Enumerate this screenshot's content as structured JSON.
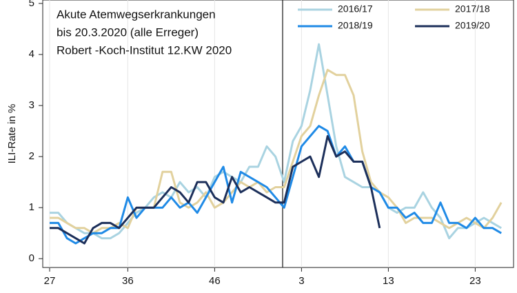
{
  "chart_data": {
    "type": "line",
    "annotation_lines": [
      "Akute Atemwegserkrankungen",
      "bis 20.3.2020 (alle Erreger)",
      "Robert -Koch-Institut 12.KW 2020"
    ],
    "y_label": "ILI-Rate in %",
    "categories": [
      "27",
      null,
      null,
      null,
      null,
      null,
      null,
      null,
      null,
      "36",
      null,
      null,
      null,
      null,
      null,
      null,
      null,
      null,
      null,
      "46",
      null,
      null,
      null,
      null,
      null,
      null,
      null,
      null,
      null,
      "3",
      null,
      null,
      null,
      null,
      null,
      null,
      null,
      null,
      null,
      "13",
      null,
      null,
      null,
      null,
      null,
      null,
      null,
      null,
      null,
      "23",
      null,
      null,
      null
    ],
    "ylim": [
      -0.2,
      5
    ],
    "yticks": [
      0,
      1,
      2,
      3,
      4,
      5
    ],
    "grid": true,
    "series": [
      {
        "name": "2016/17",
        "color": "#a9d3e1",
        "values": [
          0.9,
          0.9,
          0.7,
          0.6,
          0.5,
          0.5,
          0.4,
          0.4,
          0.5,
          0.7,
          0.9,
          1.0,
          1.2,
          1.3,
          1.2,
          1.5,
          1.3,
          1.4,
          1.2,
          1.6,
          1.7,
          1.6,
          1.5,
          1.8,
          1.8,
          2.2,
          2.0,
          1.5,
          2.3,
          2.6,
          3.3,
          4.2,
          3.2,
          2.2,
          1.6,
          1.5,
          1.4,
          1.4,
          1.3,
          1.0,
          0.9,
          1.0,
          1.0,
          1.3,
          1.0,
          0.8,
          0.4,
          0.6,
          0.6,
          0.7,
          0.8,
          0.7,
          0.6
        ]
      },
      {
        "name": "2017/18",
        "color": "#e2d19d",
        "values": [
          0.8,
          0.8,
          0.7,
          0.6,
          0.6,
          0.5,
          0.6,
          0.6,
          0.7,
          0.6,
          1.0,
          1.0,
          1.0,
          1.7,
          1.7,
          1.1,
          1.0,
          1.1,
          1.3,
          1.0,
          1.1,
          1.3,
          1.5,
          1.4,
          1.5,
          1.3,
          1.4,
          1.4,
          1.9,
          2.4,
          2.6,
          3.2,
          3.7,
          3.6,
          3.6,
          3.2,
          2.1,
          1.5,
          1.3,
          1.2,
          1.0,
          0.7,
          0.8,
          0.8,
          0.8,
          0.7,
          0.6,
          0.7,
          0.8,
          0.7,
          0.6,
          0.8,
          1.1
        ]
      },
      {
        "name": "2018/19",
        "color": "#1f8ae6",
        "values": [
          0.7,
          0.7,
          0.4,
          0.3,
          0.4,
          0.5,
          0.5,
          0.6,
          0.6,
          1.2,
          0.8,
          1.0,
          1.0,
          1.0,
          1.2,
          1.0,
          1.1,
          0.9,
          1.2,
          1.5,
          1.8,
          1.1,
          1.7,
          1.6,
          1.5,
          1.4,
          1.2,
          1.0,
          1.6,
          2.2,
          2.4,
          2.6,
          2.5,
          2.0,
          2.2,
          1.9,
          1.9,
          1.4,
          1.3,
          1.0,
          1.0,
          0.8,
          0.9,
          0.7,
          0.7,
          1.1,
          0.7,
          0.7,
          0.6,
          0.8,
          0.6,
          0.6,
          0.5
        ]
      },
      {
        "name": "2019/20",
        "color": "#1c2f5a",
        "values": [
          0.6,
          0.6,
          0.5,
          0.4,
          0.3,
          0.6,
          0.7,
          0.7,
          0.6,
          0.8,
          1.0,
          1.0,
          1.0,
          1.2,
          1.4,
          1.3,
          1.1,
          1.5,
          1.5,
          1.2,
          1.1,
          1.6,
          1.3,
          1.4,
          1.3,
          1.2,
          1.1,
          1.1,
          1.8,
          1.9,
          2.0,
          1.6,
          2.4,
          2.0,
          2.1,
          1.9,
          1.9,
          1.4,
          0.6,
          null,
          null,
          null,
          null,
          null,
          null,
          null,
          null,
          null,
          null,
          null,
          null,
          null,
          null
        ]
      }
    ]
  }
}
